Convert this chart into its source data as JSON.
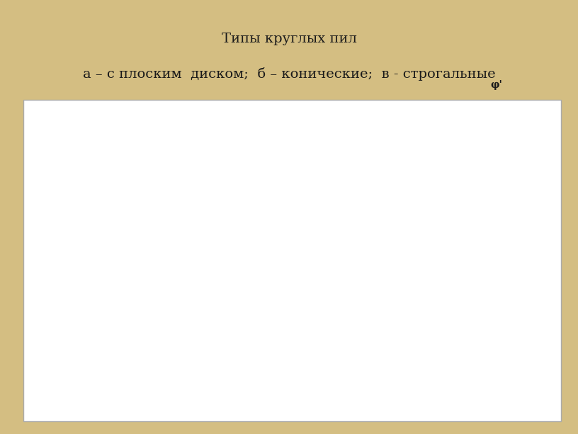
{
  "title_line1": "Типы круглых пил",
  "title_line2": "а – с плоским  диском;  б – конические;  в - строгальные",
  "bg_color": "#d4be82",
  "panel_bg": "#ffffff",
  "line_color": "#1a1a1a",
  "title_fontsize": 14,
  "label_fontsize": 10
}
